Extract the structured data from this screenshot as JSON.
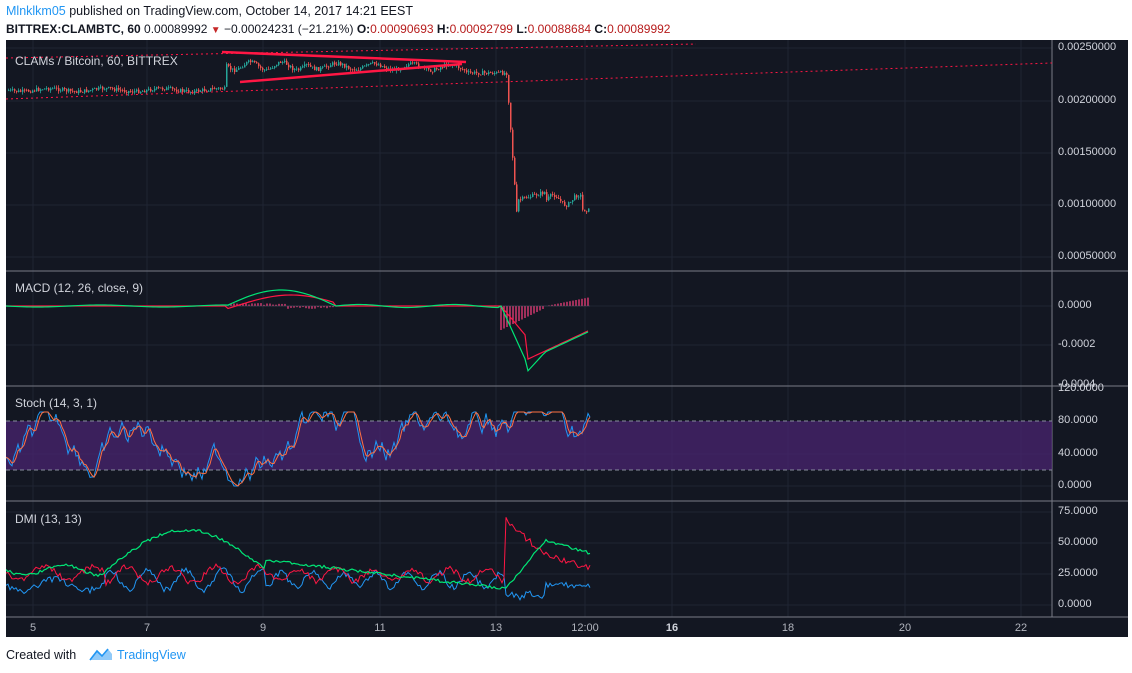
{
  "header": {
    "author": "Mlnklkm05",
    "published": "published on TradingView.com, October 14, 2017 14:21 EEST",
    "symbol": "BITTREX:CLAMBTC, 60",
    "last": "0.00089992",
    "change": "−0.00024231 (−21.21%)",
    "o_label": "O:",
    "o": "0.00090693",
    "h_label": "H:",
    "h": "0.00092799",
    "l_label": "L:",
    "l": "0.00088684",
    "c_label": "C:",
    "c": "0.00089992"
  },
  "panes": {
    "price": {
      "title": "CLAMs / Bitcoin, 60, BITTREX",
      "axis": [
        "0.00250000",
        "0.00200000",
        "0.00150000",
        "0.00100000",
        "0.00050000"
      ]
    },
    "macd": {
      "title": "MACD (12, 26, close, 9)",
      "axis": [
        "0.0000",
        "-0.0002",
        "-0.0004"
      ]
    },
    "stoch": {
      "title": "Stoch (14, 3, 1)",
      "axis": [
        "120.0000",
        "80.0000",
        "40.0000",
        "0.0000"
      ]
    },
    "dmi": {
      "title": "DMI (13, 13)",
      "axis": [
        "75.0000",
        "50.0000",
        "25.0000",
        "0.0000"
      ]
    }
  },
  "time_axis": [
    "5",
    "7",
    "9",
    "11",
    "13",
    "12:00",
    "16",
    "18",
    "20",
    "22"
  ],
  "colors": {
    "background": "#131722",
    "candle_up": "#26a69a",
    "candle_down": "#ef5350",
    "trendline": "#ff1744",
    "macd_line": "#00e676",
    "signal_line": "#ff1744",
    "histogram": "#ff4081",
    "stoch_k": "#2196f3",
    "stoch_d": "#ff7043",
    "stoch_band": "#4a2470",
    "di_plus": "#00e676",
    "di_minus": "#ff1744",
    "adx": "#2196f3"
  },
  "footer": {
    "created": "Created with",
    "brand": "TradingView"
  }
}
